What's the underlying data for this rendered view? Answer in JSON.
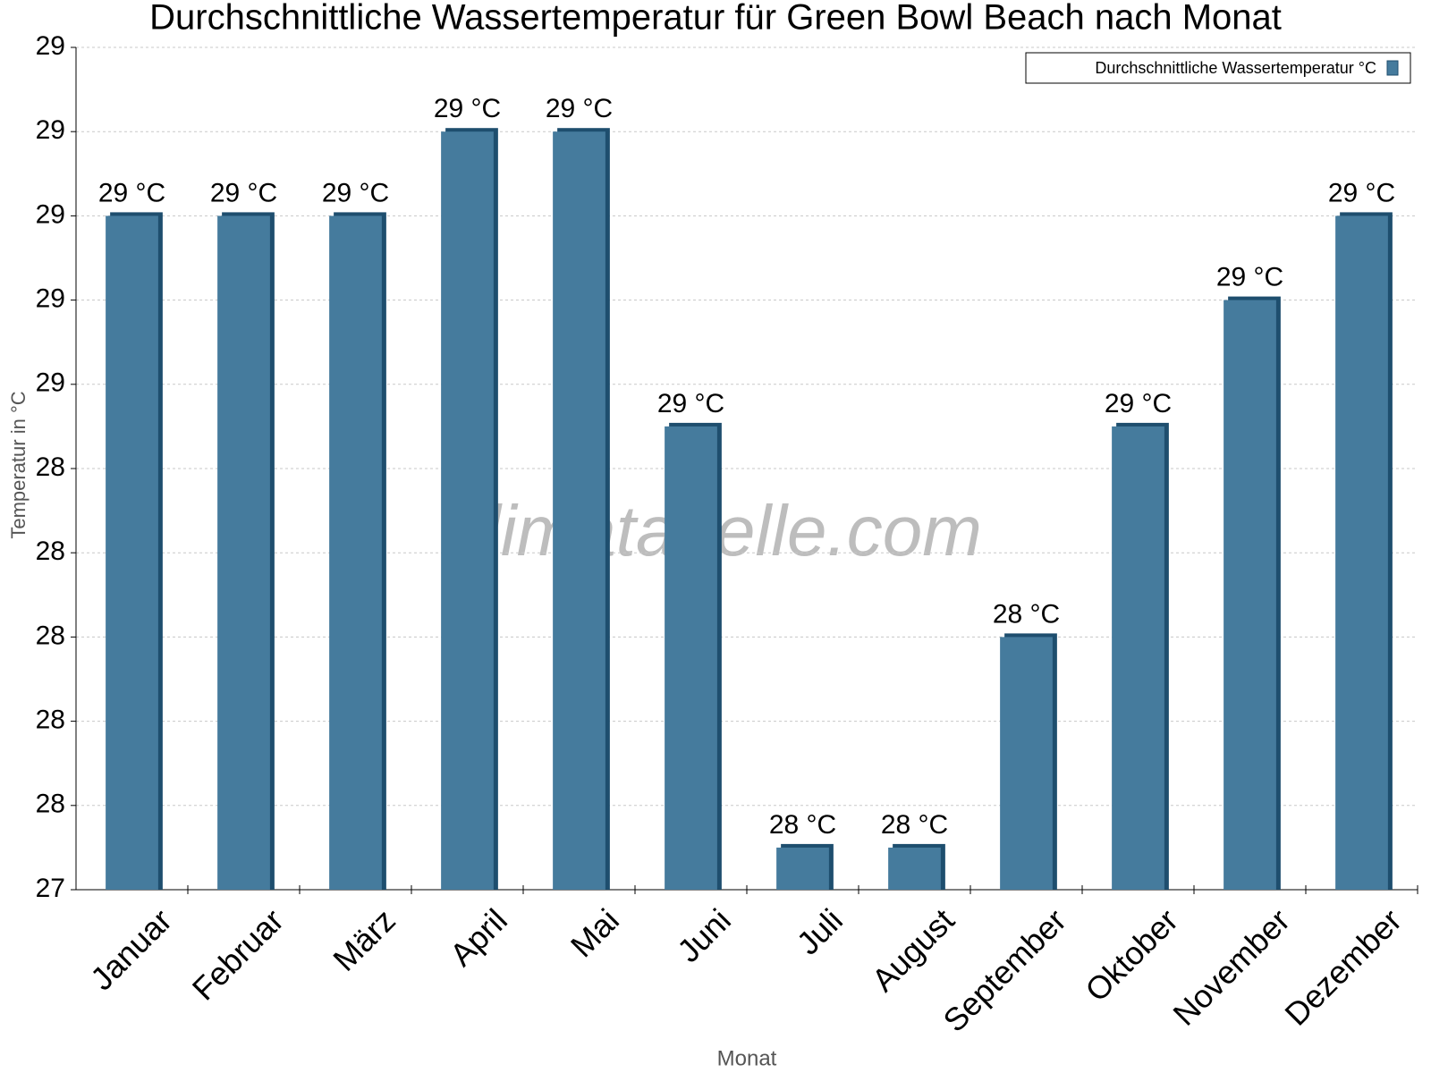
{
  "chart_data": {
    "type": "bar",
    "title": "Durchschnittliche Wassertemperatur für Green Bowl Beach nach Monat",
    "watermark": "klimatabelle.com",
    "x_label": "Monat",
    "y_label": "Temperatur in °C",
    "categories": [
      "Januar",
      "Februar",
      "März",
      "April",
      "Mai",
      "Juni",
      "Juli",
      "August",
      "September",
      "Oktober",
      "November",
      "Dezember"
    ],
    "series": [
      {
        "name": "Durchschnittliche Wassertemperatur °C",
        "color": "#457b9d",
        "values": [
          29.0,
          29.0,
          29.0,
          29.2,
          29.2,
          28.5,
          27.5,
          27.5,
          28.0,
          28.5,
          28.8,
          29.0
        ],
        "value_labels": [
          "29 °C",
          "29 °C",
          "29 °C",
          "29 °C",
          "29 °C",
          "29 °C",
          "28 °C",
          "28 °C",
          "28 °C",
          "29 °C",
          "29 °C",
          "29 °C"
        ]
      }
    ],
    "ylim": [
      27.4,
      29.4
    ],
    "yticks": [
      {
        "value": 27.4,
        "label": "27"
      },
      {
        "value": 27.6,
        "label": "28"
      },
      {
        "value": 27.8,
        "label": "28"
      },
      {
        "value": 28.0,
        "label": "28"
      },
      {
        "value": 28.2,
        "label": "28"
      },
      {
        "value": 28.4,
        "label": "28"
      },
      {
        "value": 28.6,
        "label": "29"
      },
      {
        "value": 28.8,
        "label": "29"
      },
      {
        "value": 29.0,
        "label": "29"
      },
      {
        "value": 29.2,
        "label": "29"
      },
      {
        "value": 29.4,
        "label": "29"
      }
    ],
    "grid": true,
    "legend": "top-right"
  }
}
